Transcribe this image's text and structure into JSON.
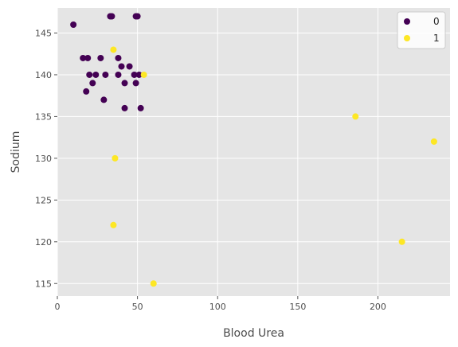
{
  "chart_data": {
    "type": "scatter",
    "title": "",
    "xlabel": "Blood Urea",
    "ylabel": "Sodium",
    "xlim": [
      0,
      245
    ],
    "ylim": [
      113.5,
      148
    ],
    "xticks": [
      0,
      50,
      100,
      150,
      200
    ],
    "yticks": [
      115,
      120,
      125,
      130,
      135,
      140,
      145
    ],
    "grid": true,
    "legend": "top-right",
    "series": [
      {
        "name": "0",
        "color": "#440154",
        "points": [
          {
            "x": 10,
            "y": 146
          },
          {
            "x": 33,
            "y": 147
          },
          {
            "x": 34,
            "y": 147
          },
          {
            "x": 49,
            "y": 147
          },
          {
            "x": 50,
            "y": 147
          },
          {
            "x": 16,
            "y": 142
          },
          {
            "x": 19,
            "y": 142
          },
          {
            "x": 27,
            "y": 142
          },
          {
            "x": 38,
            "y": 142
          },
          {
            "x": 40,
            "y": 141
          },
          {
            "x": 45,
            "y": 141
          },
          {
            "x": 20,
            "y": 140
          },
          {
            "x": 24,
            "y": 140
          },
          {
            "x": 30,
            "y": 140
          },
          {
            "x": 38,
            "y": 140
          },
          {
            "x": 48,
            "y": 140
          },
          {
            "x": 51,
            "y": 140
          },
          {
            "x": 22,
            "y": 139
          },
          {
            "x": 42,
            "y": 139
          },
          {
            "x": 49,
            "y": 139
          },
          {
            "x": 18,
            "y": 138
          },
          {
            "x": 29,
            "y": 137
          },
          {
            "x": 42,
            "y": 136
          },
          {
            "x": 52,
            "y": 136
          }
        ]
      },
      {
        "name": "1",
        "color": "#fde725",
        "points": [
          {
            "x": 35,
            "y": 143
          },
          {
            "x": 54,
            "y": 140
          },
          {
            "x": 186,
            "y": 135
          },
          {
            "x": 235,
            "y": 132
          },
          {
            "x": 36,
            "y": 130
          },
          {
            "x": 35,
            "y": 122
          },
          {
            "x": 215,
            "y": 120
          },
          {
            "x": 60,
            "y": 115
          }
        ]
      }
    ]
  },
  "style": {
    "plot_background": "#e5e5e5",
    "grid_color": "#ffffff",
    "legend_background": "#ffffff",
    "legend_border": "#cccccc"
  }
}
